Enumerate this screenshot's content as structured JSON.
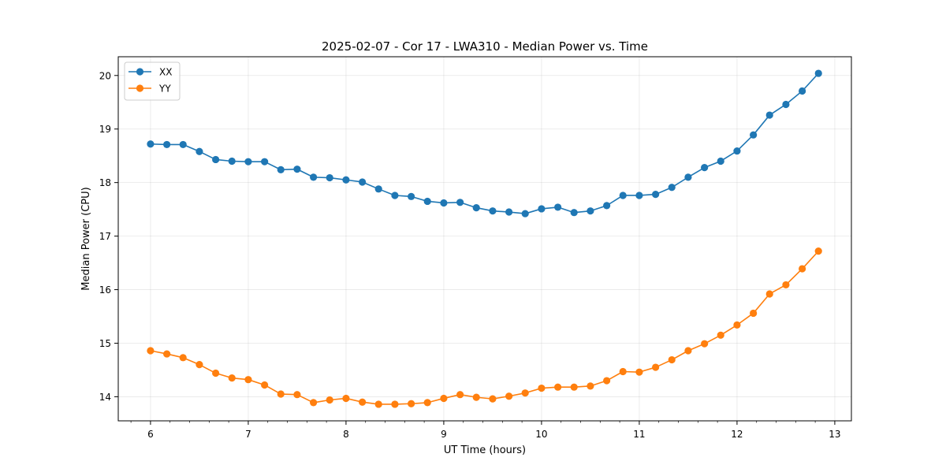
{
  "chart_data": {
    "type": "line",
    "title": "2025-02-07 - Cor 17 - LWA310 - Median Power vs. Time",
    "xlabel": "UT Time (hours)",
    "ylabel": "Median Power (CPU)",
    "xlim": [
      5.67,
      13.17
    ],
    "ylim": [
      13.55,
      20.35
    ],
    "xticks": [
      6,
      7,
      8,
      9,
      10,
      11,
      12,
      13
    ],
    "yticks": [
      14,
      15,
      16,
      17,
      18,
      19,
      20
    ],
    "grid": true,
    "legend_position": "top-left",
    "x": [
      6.0,
      6.167,
      6.333,
      6.5,
      6.667,
      6.833,
      7.0,
      7.167,
      7.333,
      7.5,
      7.667,
      7.833,
      8.0,
      8.167,
      8.333,
      8.5,
      8.667,
      8.833,
      9.0,
      9.167,
      9.333,
      9.5,
      9.667,
      9.833,
      10.0,
      10.167,
      10.333,
      10.5,
      10.667,
      10.833,
      11.0,
      11.167,
      11.333,
      11.5,
      11.667,
      11.833,
      12.0,
      12.167,
      12.333,
      12.5,
      12.667,
      12.833
    ],
    "series": [
      {
        "name": "XX",
        "color": "#1f77b4",
        "values": [
          18.72,
          18.71,
          18.71,
          18.58,
          18.43,
          18.4,
          18.39,
          18.39,
          18.24,
          18.25,
          18.1,
          18.09,
          18.05,
          18.01,
          17.88,
          17.76,
          17.74,
          17.65,
          17.62,
          17.63,
          17.53,
          17.47,
          17.45,
          17.42,
          17.51,
          17.54,
          17.44,
          17.47,
          17.57,
          17.76,
          17.76,
          17.78,
          17.91,
          18.1,
          18.28,
          18.4,
          18.59,
          18.89,
          19.26,
          19.46,
          19.71,
          20.04
        ]
      },
      {
        "name": "YY",
        "color": "#ff7f0e",
        "values": [
          14.86,
          14.8,
          14.73,
          14.6,
          14.44,
          14.35,
          14.32,
          14.22,
          14.05,
          14.04,
          13.89,
          13.94,
          13.97,
          13.9,
          13.86,
          13.86,
          13.87,
          13.89,
          13.97,
          14.04,
          13.99,
          13.96,
          14.01,
          14.07,
          14.16,
          14.18,
          14.18,
          14.2,
          14.3,
          14.47,
          14.46,
          14.55,
          14.69,
          14.86,
          14.99,
          15.15,
          15.34,
          15.56,
          15.92,
          16.09,
          16.39,
          16.72
        ]
      }
    ]
  }
}
